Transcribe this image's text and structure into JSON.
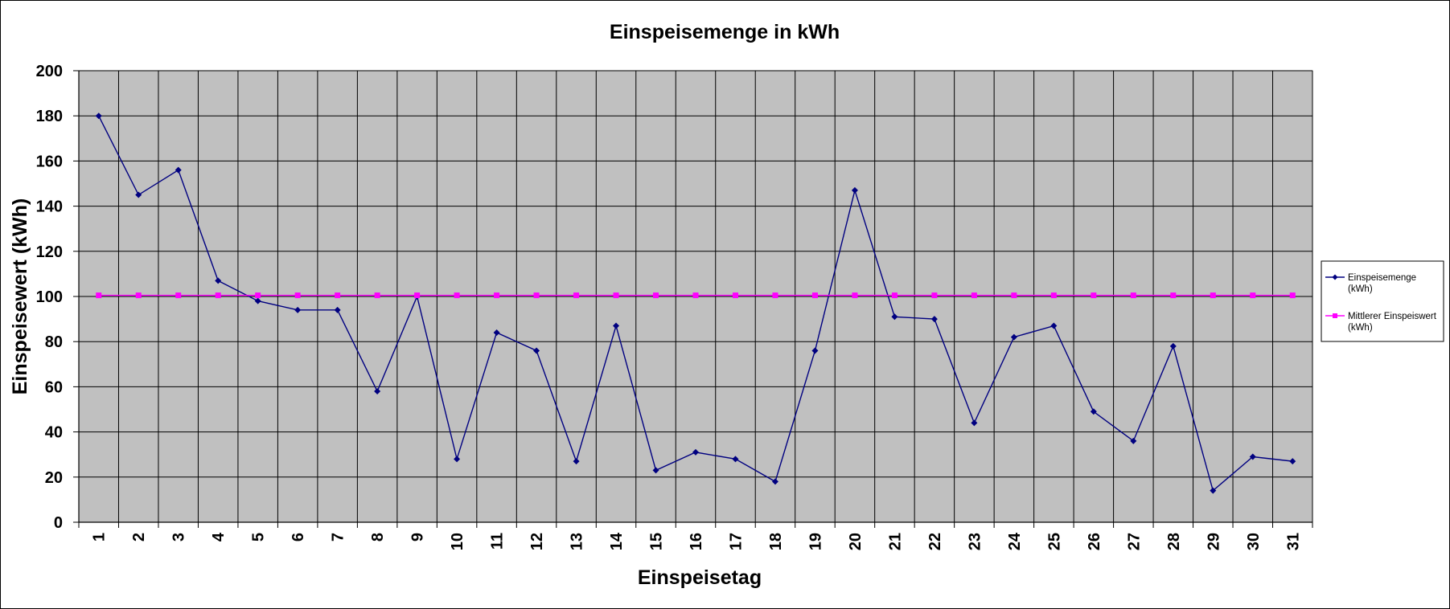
{
  "chart_data": {
    "type": "line",
    "title": "Einspeisemenge in kWh",
    "xlabel": "Einspeisetag",
    "ylabel": "Einspeisewert  (kWh)",
    "ylim": [
      0,
      200
    ],
    "yticks": [
      "0",
      "20",
      "40",
      "60",
      "80",
      "100",
      "120",
      "140",
      "160",
      "180",
      "200"
    ],
    "categories": [
      "1",
      "2",
      "3",
      "4",
      "5",
      "6",
      "7",
      "8",
      "9",
      "10",
      "11",
      "12",
      "13",
      "14",
      "15",
      "16",
      "17",
      "18",
      "19",
      "20",
      "21",
      "22",
      "23",
      "24",
      "25",
      "26",
      "27",
      "28",
      "29",
      "30",
      "31"
    ],
    "grid": true,
    "plot_background": "#c0c0c0",
    "legend_position": "right",
    "series": [
      {
        "name": "Einspeisemenge (kWh)",
        "legend_lines": [
          "Einspeisemenge",
          "(kWh)"
        ],
        "color": "#000080",
        "marker": "diamond",
        "values": [
          180,
          145,
          156,
          107,
          98,
          94,
          94,
          58,
          100,
          28,
          84,
          76,
          27,
          87,
          23,
          31,
          28,
          18,
          76,
          147,
          91,
          90,
          44,
          82,
          87,
          49,
          36,
          78,
          14,
          29,
          27
        ]
      },
      {
        "name": "Mittlerer Einspeiswert (kWh)",
        "legend_lines": [
          "Mittlerer Einspeiswert",
          "(kWh)"
        ],
        "color": "#ff00ff",
        "marker": "square",
        "values": [
          100.5,
          100.5,
          100.5,
          100.5,
          100.5,
          100.5,
          100.5,
          100.5,
          100.5,
          100.5,
          100.5,
          100.5,
          100.5,
          100.5,
          100.5,
          100.5,
          100.5,
          100.5,
          100.5,
          100.5,
          100.5,
          100.5,
          100.5,
          100.5,
          100.5,
          100.5,
          100.5,
          100.5,
          100.5,
          100.5,
          100.5
        ]
      }
    ]
  }
}
